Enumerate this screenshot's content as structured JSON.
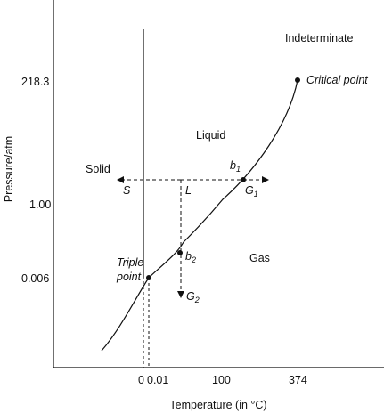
{
  "axes": {
    "y_label": "Pressure/atm",
    "x_label": "Temperature (in °C)",
    "y_ticks": [
      "218.3",
      "1.00",
      "0.006"
    ],
    "x_ticks": [
      "0",
      "0.01",
      "100",
      "374"
    ]
  },
  "regions": {
    "solid": "Solid",
    "liquid": "Liquid",
    "gas": "Gas",
    "indeterminate": "Indeterminate"
  },
  "points": {
    "critical": "Critical point",
    "triple_line1": "Triple",
    "triple_line2": "point",
    "b1_main": "b",
    "b1_sub": "1",
    "b2_main": "b",
    "b2_sub": "2",
    "g1_main": "G",
    "g1_sub": "1",
    "g2_main": "G",
    "g2_sub": "2",
    "s": "S",
    "l": "L"
  },
  "colors": {
    "line": "#111111",
    "background": "#ffffff"
  }
}
